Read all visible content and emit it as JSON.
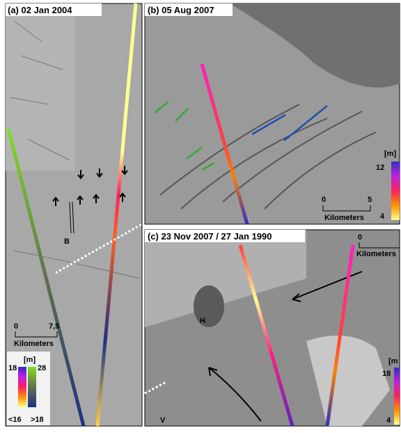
{
  "panels": [
    {
      "title": "(a) 02 Jan 2004",
      "labels": [
        "B"
      ],
      "scale": {
        "ticks": [
          "0",
          "7,5"
        ],
        "unit": "Kilometers"
      },
      "colorbar": {
        "unit": "[m]",
        "labels": [
          "18",
          "28",
          "<16",
          ">18"
        ]
      }
    },
    {
      "title": "(b) 05 Aug 2007",
      "scale": {
        "ticks": [
          "0",
          "5"
        ],
        "unit": "Kilometers"
      },
      "colorbar": {
        "unit": "[m]",
        "labels": [
          "12",
          "4"
        ]
      }
    },
    {
      "title": "(c) 23 Nov 2007 / 27 Jan 1990",
      "labels": [
        "H",
        "V"
      ],
      "scale": {
        "ticks": [
          "0"
        ],
        "unit": "Kilometers"
      },
      "colorbar": {
        "unit": "[m",
        "labels": [
          "18",
          "4"
        ]
      }
    }
  ]
}
